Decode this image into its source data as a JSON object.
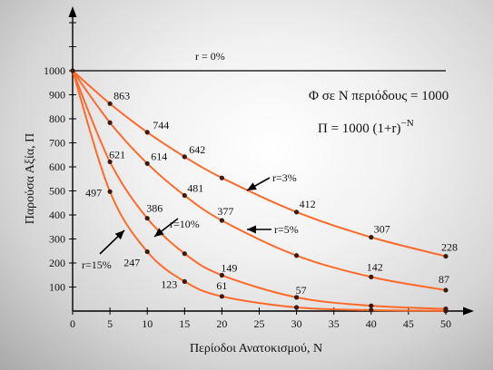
{
  "chart_data": {
    "type": "line",
    "xlabel": "Περίοδοι Ανατοκισμού, N",
    "ylabel": "Παρούσα Αξία, Π",
    "xlim": [
      0,
      50
    ],
    "ylim": [
      0,
      1000
    ],
    "x_ticks": [
      0,
      5,
      10,
      15,
      20,
      25,
      30,
      35,
      40,
      45,
      50
    ],
    "y_ticks": [
      100,
      200,
      300,
      400,
      500,
      600,
      700,
      800,
      900,
      1000
    ],
    "annotations": {
      "formula1": "Φ σε N περιόδους = 1000",
      "formula2_main": "Π = 1000 (1+r)",
      "formula2_exp": "−N"
    },
    "series": [
      {
        "name": "r = 0%",
        "color": "#000000",
        "x": [
          0,
          50
        ],
        "y": [
          1000,
          1000
        ]
      },
      {
        "name": "r=3%",
        "color": "#ff6a2a",
        "x": [
          0,
          5,
          10,
          15,
          20,
          30,
          40,
          50
        ],
        "y": [
          1000,
          863,
          744,
          642,
          554,
          412,
          307,
          228
        ],
        "labels": [
          "",
          "863",
          "744",
          "642",
          "",
          "412",
          "307",
          "228"
        ]
      },
      {
        "name": "r=5%",
        "color": "#ff6a2a",
        "x": [
          0,
          5,
          10,
          15,
          20,
          30,
          40,
          50
        ],
        "y": [
          1000,
          784,
          614,
          481,
          377,
          231,
          142,
          87
        ],
        "labels": [
          "",
          "",
          "614",
          "481",
          "377",
          "",
          "142",
          "87"
        ]
      },
      {
        "name": "r=10%",
        "color": "#ff6a2a",
        "x": [
          0,
          5,
          10,
          15,
          20,
          30,
          40,
          50
        ],
        "y": [
          1000,
          621,
          386,
          239,
          149,
          57,
          22,
          9
        ],
        "labels": [
          "",
          "621",
          "386",
          "",
          "149",
          "57",
          "",
          ""
        ]
      },
      {
        "name": "r=15%",
        "color": "#ff6a2a",
        "x": [
          0,
          5,
          10,
          15,
          20,
          30,
          40,
          50
        ],
        "y": [
          1000,
          497,
          247,
          123,
          61,
          15,
          4,
          1
        ],
        "labels": [
          "",
          "497",
          "247",
          "123",
          "61",
          "",
          "",
          ""
        ]
      }
    ]
  }
}
